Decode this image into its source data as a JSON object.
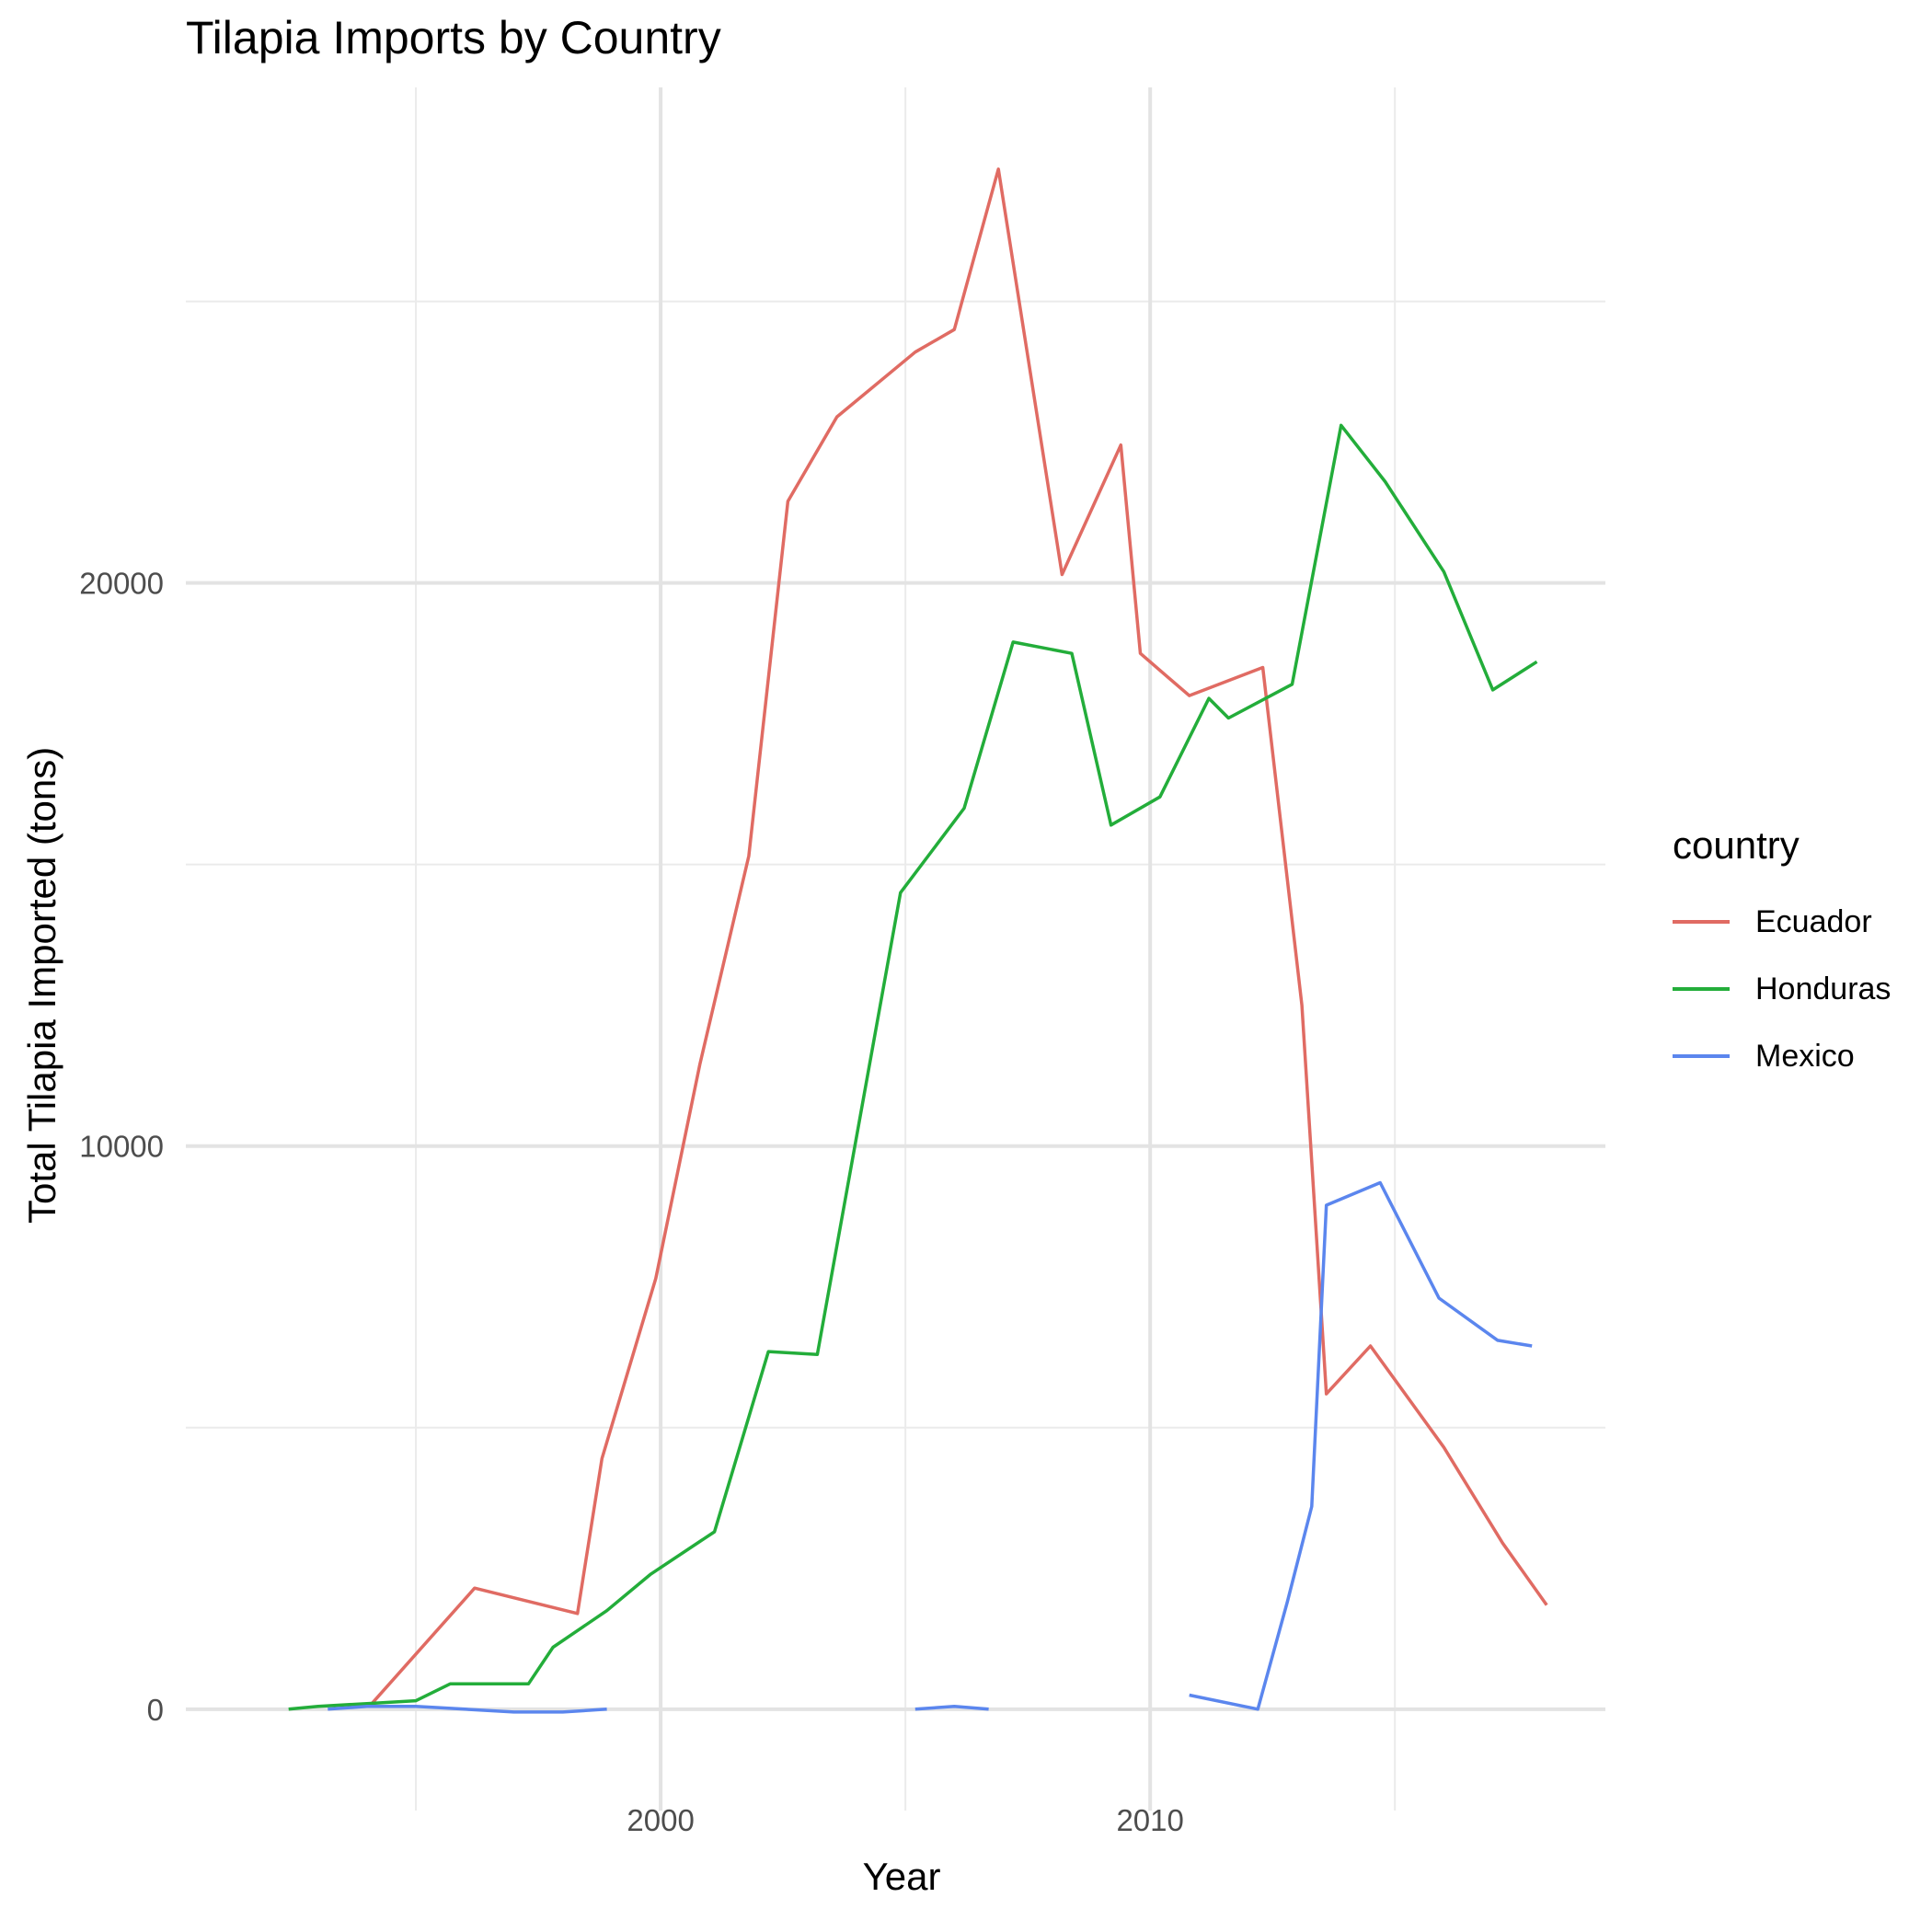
{
  "chart_data": {
    "type": "line",
    "title": "Tilapia Imports by Country",
    "xlabel": "Year",
    "ylabel": "Total Tilapia Imported (tons)",
    "xlim": [
      1990.3,
      2019.3
    ],
    "ylim": [
      -1800,
      28800
    ],
    "x_ticks": [
      2000,
      2010
    ],
    "y_ticks": [
      0,
      10000,
      20000
    ],
    "grid": true,
    "legend": {
      "title": "country",
      "position": "right"
    },
    "series": [
      {
        "name": "Ecuador",
        "color": "#E06B63",
        "points": [
          [
            1994.1,
            100
          ],
          [
            1996.2,
            2150
          ],
          [
            1998.3,
            1700
          ],
          [
            1998.8,
            4450
          ],
          [
            1999.9,
            7650
          ],
          [
            2000.8,
            11450
          ],
          [
            2001.8,
            15150
          ],
          [
            2002.6,
            21450
          ],
          [
            2003.6,
            22950
          ],
          [
            2005.2,
            24100
          ],
          [
            2006.0,
            24500
          ],
          [
            2006.9,
            27350
          ],
          [
            2008.2,
            20150
          ],
          [
            2009.4,
            22450
          ],
          [
            2009.8,
            18750
          ],
          [
            2010.8,
            18000
          ],
          [
            2012.3,
            18500
          ],
          [
            2013.1,
            12500
          ],
          [
            2013.6,
            5600
          ],
          [
            2014.5,
            6450
          ],
          [
            2016.0,
            4650
          ],
          [
            2017.2,
            2950
          ],
          [
            2018.1,
            1850
          ]
        ]
      },
      {
        "name": "Honduras",
        "color": "#23AD3A",
        "points": [
          [
            1992.4,
            0
          ],
          [
            1993.0,
            50
          ],
          [
            1994.0,
            100
          ],
          [
            1995.0,
            150
          ],
          [
            1995.7,
            450
          ],
          [
            1996.6,
            450
          ],
          [
            1997.3,
            450
          ],
          [
            1997.8,
            1100
          ],
          [
            1998.9,
            1750
          ],
          [
            1999.8,
            2400
          ],
          [
            2001.1,
            3150
          ],
          [
            2002.2,
            6350
          ],
          [
            2003.2,
            6300
          ],
          [
            2004.9,
            14500
          ],
          [
            2006.2,
            16000
          ],
          [
            2007.2,
            18950
          ],
          [
            2008.4,
            18750
          ],
          [
            2009.2,
            15700
          ],
          [
            2010.2,
            16200
          ],
          [
            2011.2,
            17950
          ],
          [
            2011.6,
            17600
          ],
          [
            2012.9,
            18200
          ],
          [
            2013.9,
            22800
          ],
          [
            2014.8,
            21800
          ],
          [
            2016.0,
            20200
          ],
          [
            2017.0,
            18100
          ],
          [
            2017.9,
            18600
          ]
        ]
      },
      {
        "name": "Mexico",
        "color": "#5B86EE",
        "segments": [
          [
            [
              1993.2,
              0
            ],
            [
              1994.0,
              50
            ],
            [
              1995.0,
              50
            ],
            [
              1996.0,
              0
            ],
            [
              1997.0,
              -50
            ],
            [
              1998.0,
              -50
            ],
            [
              1998.9,
              0
            ]
          ],
          [
            [
              2005.2,
              0
            ],
            [
              2006.0,
              50
            ],
            [
              2006.7,
              0
            ]
          ],
          [
            [
              2010.8,
              250
            ],
            [
              2012.2,
              0
            ],
            [
              2012.8,
              1900
            ],
            [
              2013.3,
              3600
            ],
            [
              2013.6,
              8950
            ],
            [
              2014.7,
              9350
            ],
            [
              2015.9,
              7300
            ],
            [
              2017.1,
              6550
            ],
            [
              2017.8,
              6450
            ]
          ]
        ]
      }
    ]
  }
}
